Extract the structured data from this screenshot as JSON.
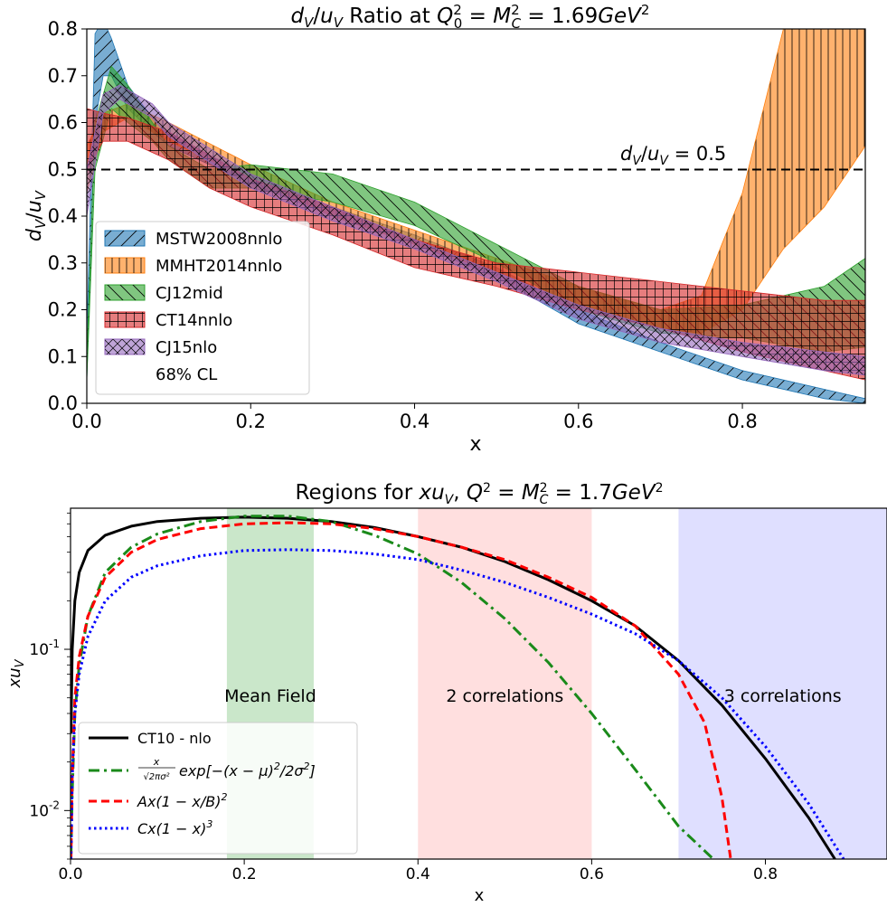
{
  "chart_data": [
    {
      "type": "area",
      "title": "d_V/u_V Ratio at Q_0^2 = M_C^2 = 1.69GeV^2",
      "xlabel": "x",
      "ylabel": "d_V/u_V",
      "xlim": [
        0.0,
        0.95
      ],
      "ylim": [
        0.0,
        0.8
      ],
      "xticks": [
        "0.0",
        "0.2",
        "0.4",
        "0.6",
        "0.8"
      ],
      "yticks": [
        "0.0",
        "0.1",
        "0.2",
        "0.3",
        "0.4",
        "0.5",
        "0.6",
        "0.7",
        "0.8"
      ],
      "grid": false,
      "legend_position": "lower-left",
      "reference_line": {
        "y": 0.5,
        "label": "d_V/u_V = 0.5",
        "style": "dashed"
      },
      "legend_note": "68% CL",
      "series": [
        {
          "name": "MSTW2008nnlo",
          "color": "#1f77b4",
          "hatch": "//",
          "x": [
            0.0,
            0.01,
            0.02,
            0.03,
            0.05,
            0.08,
            0.1,
            0.15,
            0.2,
            0.3,
            0.4,
            0.5,
            0.6,
            0.7,
            0.8,
            0.9,
            0.95
          ],
          "upper": [
            0.15,
            0.79,
            0.82,
            0.78,
            0.68,
            0.61,
            0.58,
            0.53,
            0.49,
            0.42,
            0.36,
            0.29,
            0.2,
            0.13,
            0.07,
            0.03,
            0.01
          ],
          "lower": [
            0.05,
            0.6,
            0.7,
            0.7,
            0.63,
            0.58,
            0.55,
            0.51,
            0.47,
            0.4,
            0.34,
            0.27,
            0.17,
            0.11,
            0.05,
            0.01,
            0.0
          ]
        },
        {
          "name": "MMHT2014nnlo",
          "color": "#ff7f0e",
          "hatch": "||",
          "x": [
            0.0,
            0.02,
            0.05,
            0.1,
            0.2,
            0.3,
            0.4,
            0.5,
            0.6,
            0.7,
            0.75,
            0.8,
            0.85,
            0.9,
            0.95
          ],
          "upper": [
            0.55,
            0.62,
            0.64,
            0.6,
            0.51,
            0.43,
            0.37,
            0.31,
            0.25,
            0.2,
            0.23,
            0.45,
            0.8,
            0.8,
            0.8
          ],
          "lower": [
            0.45,
            0.58,
            0.61,
            0.56,
            0.48,
            0.4,
            0.34,
            0.28,
            0.21,
            0.16,
            0.15,
            0.2,
            0.33,
            0.42,
            0.55
          ]
        },
        {
          "name": "CJ12mid",
          "color": "#2ca02c",
          "hatch": "\\\\",
          "x": [
            0.0,
            0.01,
            0.03,
            0.05,
            0.08,
            0.1,
            0.15,
            0.2,
            0.3,
            0.4,
            0.5,
            0.6,
            0.7,
            0.8,
            0.9,
            0.95
          ],
          "upper": [
            0.1,
            0.6,
            0.72,
            0.68,
            0.6,
            0.55,
            0.5,
            0.51,
            0.49,
            0.43,
            0.34,
            0.25,
            0.2,
            0.21,
            0.25,
            0.31
          ],
          "lower": [
            0.05,
            0.5,
            0.63,
            0.6,
            0.56,
            0.52,
            0.46,
            0.46,
            0.43,
            0.38,
            0.3,
            0.2,
            0.15,
            0.14,
            0.11,
            0.12
          ]
        },
        {
          "name": "CT14nnlo",
          "color": "#d62728",
          "hatch": "+",
          "x": [
            0.0,
            0.02,
            0.05,
            0.1,
            0.15,
            0.2,
            0.3,
            0.4,
            0.5,
            0.6,
            0.7,
            0.8,
            0.9,
            0.95
          ],
          "upper": [
            0.63,
            0.62,
            0.61,
            0.58,
            0.53,
            0.48,
            0.42,
            0.35,
            0.3,
            0.28,
            0.26,
            0.24,
            0.22,
            0.22
          ],
          "lower": [
            0.5,
            0.56,
            0.56,
            0.52,
            0.46,
            0.42,
            0.36,
            0.29,
            0.25,
            0.2,
            0.16,
            0.11,
            0.07,
            0.05
          ]
        },
        {
          "name": "CJ15nlo",
          "color": "#9467bd",
          "hatch": "x",
          "x": [
            0.0,
            0.02,
            0.04,
            0.08,
            0.1,
            0.2,
            0.3,
            0.4,
            0.5,
            0.6,
            0.7,
            0.8,
            0.9,
            0.95
          ],
          "upper": [
            0.5,
            0.66,
            0.68,
            0.64,
            0.6,
            0.49,
            0.42,
            0.35,
            0.28,
            0.21,
            0.16,
            0.13,
            0.11,
            0.1
          ],
          "lower": [
            0.4,
            0.62,
            0.65,
            0.61,
            0.57,
            0.46,
            0.39,
            0.33,
            0.26,
            0.18,
            0.13,
            0.1,
            0.07,
            0.06
          ]
        }
      ]
    },
    {
      "type": "line",
      "title": "Regions for xu_V, Q^2 = M_C^2 = 1.7GeV^2",
      "xlabel": "x",
      "ylabel": "xu_V",
      "yscale": "log",
      "xlim": [
        0.0,
        0.94
      ],
      "ylim": [
        0.005,
        0.75
      ],
      "xticks": [
        "0.0",
        "0.2",
        "0.4",
        "0.6",
        "0.8"
      ],
      "yticks": [
        "10^-2",
        "10^-1"
      ],
      "grid": false,
      "legend_position": "lower-left",
      "regions": [
        {
          "label": "Mean Field",
          "x0": 0.18,
          "x1": 0.28,
          "color": "#2ca02c"
        },
        {
          "label": "2 correlations",
          "x0": 0.4,
          "x1": 0.6,
          "color": "#ff7f7f"
        },
        {
          "label": "3 correlations",
          "x0": 0.7,
          "x1": 0.94,
          "color": "#7f7fff"
        }
      ],
      "series": [
        {
          "name": "CT10 - nlo",
          "color": "#000000",
          "style": "solid",
          "x": [
            0.0005,
            0.002,
            0.005,
            0.01,
            0.02,
            0.04,
            0.07,
            0.1,
            0.15,
            0.2,
            0.25,
            0.3,
            0.35,
            0.4,
            0.45,
            0.5,
            0.55,
            0.6,
            0.65,
            0.7,
            0.75,
            0.8,
            0.85,
            0.88
          ],
          "y": [
            0.03,
            0.1,
            0.2,
            0.3,
            0.41,
            0.51,
            0.58,
            0.62,
            0.65,
            0.66,
            0.65,
            0.62,
            0.57,
            0.5,
            0.43,
            0.35,
            0.27,
            0.2,
            0.14,
            0.085,
            0.045,
            0.021,
            0.009,
            0.005
          ]
        },
        {
          "name": "x/sqrt(2πσ^2) exp[-(x-μ)^2/2σ^2]",
          "color": "#1a8a1a",
          "style": "dashdot",
          "x": [
            0.0005,
            0.002,
            0.005,
            0.01,
            0.02,
            0.04,
            0.07,
            0.1,
            0.15,
            0.2,
            0.25,
            0.3,
            0.35,
            0.4,
            0.45,
            0.5,
            0.55,
            0.6,
            0.65,
            0.7,
            0.74
          ],
          "y": [
            0.005,
            0.013,
            0.04,
            0.08,
            0.16,
            0.3,
            0.43,
            0.52,
            0.62,
            0.67,
            0.67,
            0.62,
            0.51,
            0.39,
            0.26,
            0.155,
            0.083,
            0.04,
            0.018,
            0.008,
            0.005
          ]
        },
        {
          "name": "Ax(1-x/B)^2",
          "color": "#ff0000",
          "style": "dashed",
          "x": [
            0.0005,
            0.002,
            0.005,
            0.01,
            0.02,
            0.04,
            0.07,
            0.1,
            0.15,
            0.2,
            0.25,
            0.3,
            0.35,
            0.4,
            0.45,
            0.5,
            0.55,
            0.6,
            0.65,
            0.7,
            0.73,
            0.75,
            0.76
          ],
          "y": [
            0.005,
            0.016,
            0.05,
            0.09,
            0.16,
            0.28,
            0.4,
            0.48,
            0.56,
            0.6,
            0.61,
            0.6,
            0.56,
            0.5,
            0.43,
            0.36,
            0.28,
            0.21,
            0.14,
            0.07,
            0.035,
            0.012,
            0.005
          ]
        },
        {
          "name": "Cx(1-x)^3",
          "color": "#0000ff",
          "style": "dotted",
          "x": [
            0.0005,
            0.002,
            0.005,
            0.01,
            0.02,
            0.04,
            0.07,
            0.1,
            0.15,
            0.2,
            0.25,
            0.3,
            0.35,
            0.4,
            0.45,
            0.5,
            0.55,
            0.6,
            0.65,
            0.7,
            0.75,
            0.8,
            0.85,
            0.89
          ],
          "y": [
            0.005,
            0.016,
            0.04,
            0.07,
            0.12,
            0.2,
            0.28,
            0.33,
            0.38,
            0.41,
            0.415,
            0.41,
            0.39,
            0.36,
            0.31,
            0.26,
            0.21,
            0.165,
            0.125,
            0.085,
            0.05,
            0.025,
            0.011,
            0.005
          ]
        }
      ]
    }
  ]
}
